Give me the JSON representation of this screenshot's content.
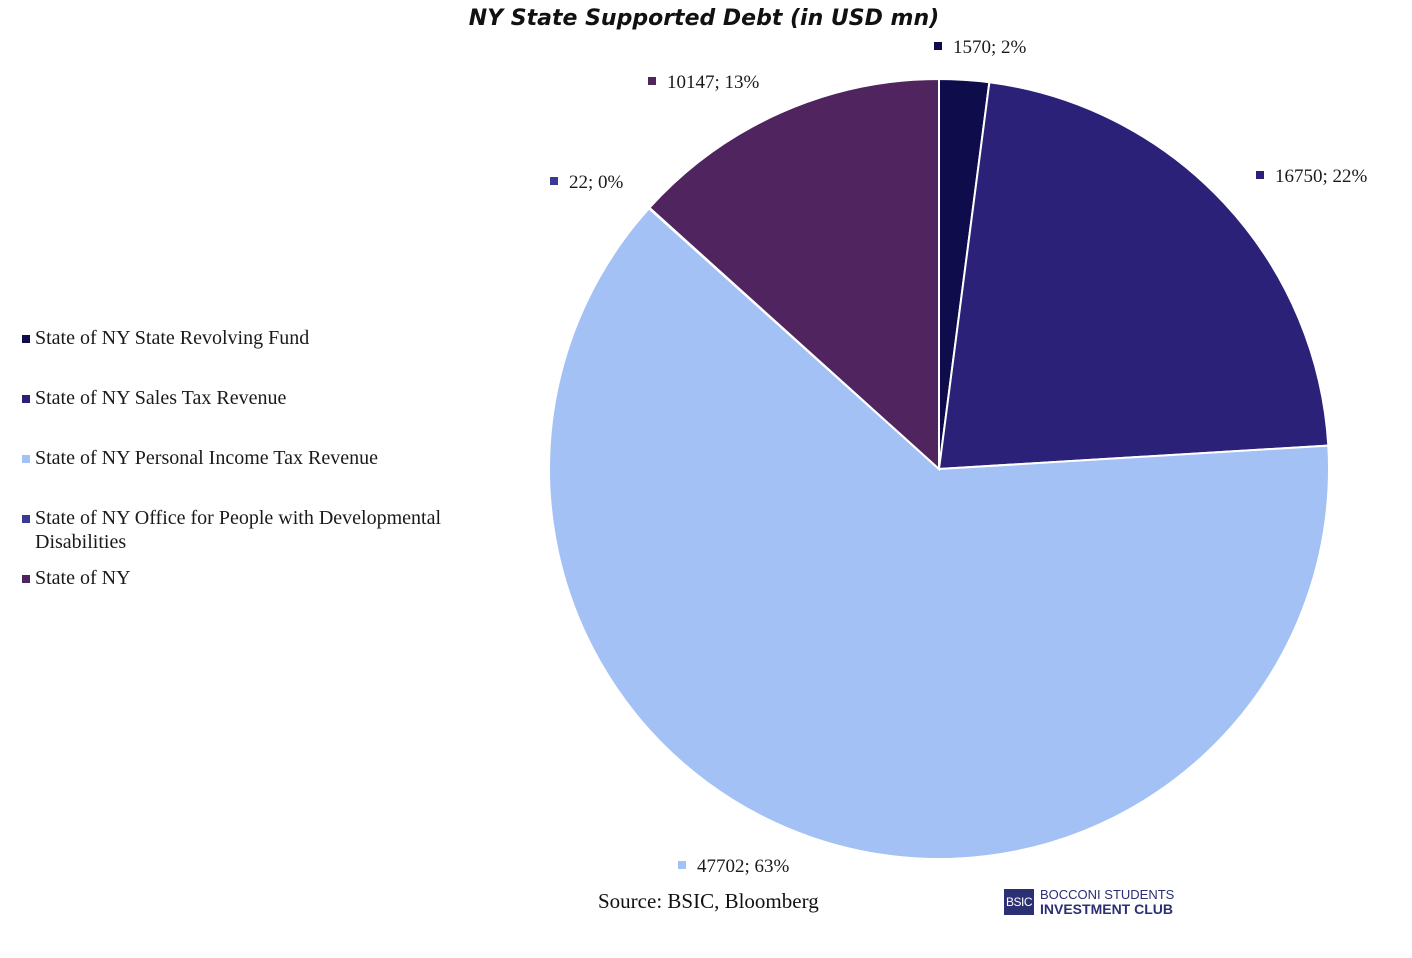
{
  "chart_data": {
    "type": "pie",
    "title": "NY State Supported Debt (in USD mn)",
    "categories": [
      "State of NY State Revolving Fund",
      "State of NY Sales Tax Revenue",
      "State of NY Personal Income Tax Revenue",
      "State of NY Office for People with Developmental Disabilities",
      "State of NY"
    ],
    "values": [
      1570,
      16750,
      47702,
      22,
      10147
    ],
    "percent_labels": [
      "2%",
      "22%",
      "63%",
      "0%",
      "13%"
    ],
    "data_labels": [
      "1570; 2%",
      "16750; 22%",
      "47702; 63%",
      "22; 0%",
      "10147; 13%"
    ],
    "colors": [
      "#0e0c4a",
      "#2b2178",
      "#a3c1f4",
      "#3a3a94",
      "#50245e"
    ],
    "legend_position": "left",
    "start_angle": "top, clockwise"
  },
  "legend": {
    "items": [
      "State of NY State Revolving Fund",
      "State of NY Sales Tax Revenue",
      "State of NY Personal Income Tax Revenue",
      "State of NY Office for People with Developmental Disabilities",
      "State of NY"
    ]
  },
  "source": "Source: BSIC, Bloomberg",
  "logo": {
    "mark": "BSIC",
    "line1": "BOCCONI STUDENTS",
    "line2": "INVESTMENT CLUB"
  }
}
